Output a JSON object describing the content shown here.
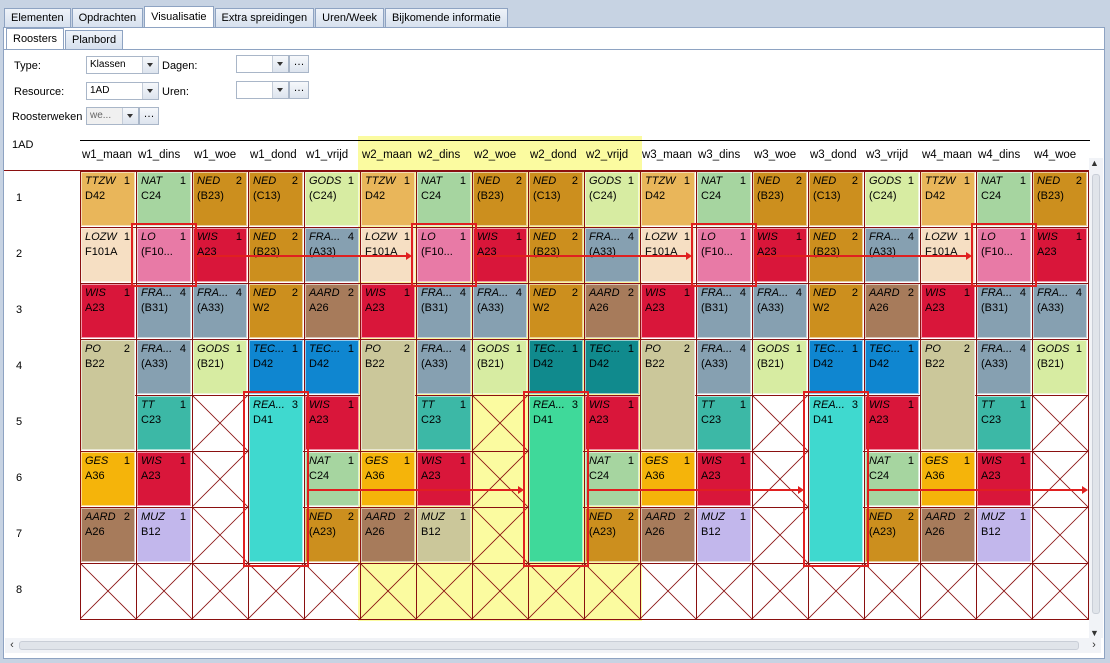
{
  "top_tabs": [
    "Elementen",
    "Opdrachten",
    "Visualisatie",
    "Extra spreidingen",
    "Uren/Week",
    "Bijkomende informatie"
  ],
  "active_top_tab": 2,
  "sub_tabs": [
    "Roosters",
    "Planbord"
  ],
  "active_sub_tab": 0,
  "form": {
    "type_label": "Type:",
    "type_value": "Klassen",
    "resource_label": "Resource:",
    "resource_value": "1AD",
    "dagen_label": "Dagen:",
    "dagen_value": "",
    "uren_label": "Uren:",
    "uren_value": "",
    "roosterweken_label": "Roosterweken",
    "roosterweken_value": "we..."
  },
  "grid": {
    "corner_label": "1AD",
    "columns": [
      "w1_maan",
      "w1_dins",
      "w1_woe",
      "w1_dond",
      "w1_vrijd",
      "w2_maan",
      "w2_dins",
      "w2_woe",
      "w2_dond",
      "w2_vrijd",
      "w3_maan",
      "w3_dins",
      "w3_woe",
      "w3_dond",
      "w3_vrijd",
      "w4_maan",
      "w4_dins",
      "w4_woe"
    ],
    "rows": [
      "1",
      "2",
      "3",
      "4",
      "5",
      "6",
      "7",
      "8"
    ],
    "cells": [
      {
        "c": 0,
        "r": 0,
        "s": "TTZW",
        "n": "1",
        "room": "D42",
        "bg": "#e9b65a"
      },
      {
        "c": 1,
        "r": 0,
        "s": "NAT",
        "n": "1",
        "room": "C24",
        "bg": "#a6d5a0"
      },
      {
        "c": 2,
        "r": 0,
        "s": "NED",
        "n": "2",
        "room": "(B23)",
        "bg": "#cc8f1e"
      },
      {
        "c": 3,
        "r": 0,
        "s": "NED",
        "n": "2",
        "room": "(C13)",
        "bg": "#cc8f1e"
      },
      {
        "c": 4,
        "r": 0,
        "s": "GODS",
        "n": "1",
        "room": "(C24)",
        "bg": "#d7eca2"
      },
      {
        "c": 5,
        "r": 0,
        "s": "TTZW",
        "n": "1",
        "room": "D42",
        "bg": "#e9b65a"
      },
      {
        "c": 6,
        "r": 0,
        "s": "NAT",
        "n": "1",
        "room": "C24",
        "bg": "#a6d5a0"
      },
      {
        "c": 7,
        "r": 0,
        "s": "NED",
        "n": "2",
        "room": "(B23)",
        "bg": "#cc8f1e"
      },
      {
        "c": 8,
        "r": 0,
        "s": "NED",
        "n": "2",
        "room": "(C13)",
        "bg": "#cc8f1e"
      },
      {
        "c": 9,
        "r": 0,
        "s": "GODS",
        "n": "1",
        "room": "(C24)",
        "bg": "#d7eca2"
      },
      {
        "c": 10,
        "r": 0,
        "s": "TTZW",
        "n": "1",
        "room": "D42",
        "bg": "#e9b65a"
      },
      {
        "c": 11,
        "r": 0,
        "s": "NAT",
        "n": "1",
        "room": "C24",
        "bg": "#a6d5a0"
      },
      {
        "c": 12,
        "r": 0,
        "s": "NED",
        "n": "2",
        "room": "(B23)",
        "bg": "#cc8f1e"
      },
      {
        "c": 13,
        "r": 0,
        "s": "NED",
        "n": "2",
        "room": "(C13)",
        "bg": "#cc8f1e"
      },
      {
        "c": 14,
        "r": 0,
        "s": "GODS",
        "n": "1",
        "room": "(C24)",
        "bg": "#d7eca2"
      },
      {
        "c": 15,
        "r": 0,
        "s": "TTZW",
        "n": "1",
        "room": "D42",
        "bg": "#e9b65a"
      },
      {
        "c": 16,
        "r": 0,
        "s": "NAT",
        "n": "1",
        "room": "C24",
        "bg": "#a6d5a0"
      },
      {
        "c": 17,
        "r": 0,
        "s": "NED",
        "n": "2",
        "room": "(B23)",
        "bg": "#cc8f1e"
      },
      {
        "c": 0,
        "r": 1,
        "s": "LOZW",
        "n": "1",
        "room": "F101A",
        "bg": "#f6dfc3"
      },
      {
        "c": 1,
        "r": 1,
        "s": "LO",
        "n": "1",
        "room": "(F10...",
        "bg": "#e87aa6"
      },
      {
        "c": 2,
        "r": 1,
        "s": "WIS",
        "n": "1",
        "room": "A23",
        "bg": "#d9163a"
      },
      {
        "c": 3,
        "r": 1,
        "s": "NED",
        "n": "2",
        "room": "(B23)",
        "bg": "#cc8f1e"
      },
      {
        "c": 4,
        "r": 1,
        "s": "FRA...",
        "n": "4",
        "room": "(A33)",
        "bg": "#86a0b1"
      },
      {
        "c": 5,
        "r": 1,
        "s": "LOZW",
        "n": "1",
        "room": "F101A",
        "bg": "#f6dfc3"
      },
      {
        "c": 6,
        "r": 1,
        "s": "LO",
        "n": "1",
        "room": "(F10...",
        "bg": "#e87aa6"
      },
      {
        "c": 7,
        "r": 1,
        "s": "WIS",
        "n": "1",
        "room": "A23",
        "bg": "#d9163a"
      },
      {
        "c": 8,
        "r": 1,
        "s": "NED",
        "n": "2",
        "room": "(B23)",
        "bg": "#cc8f1e"
      },
      {
        "c": 9,
        "r": 1,
        "s": "FRA...",
        "n": "4",
        "room": "(A33)",
        "bg": "#86a0b1"
      },
      {
        "c": 10,
        "r": 1,
        "s": "LOZW",
        "n": "1",
        "room": "F101A",
        "bg": "#f6dfc3"
      },
      {
        "c": 11,
        "r": 1,
        "s": "LO",
        "n": "1",
        "room": "(F10...",
        "bg": "#e87aa6"
      },
      {
        "c": 12,
        "r": 1,
        "s": "WIS",
        "n": "1",
        "room": "A23",
        "bg": "#d9163a"
      },
      {
        "c": 13,
        "r": 1,
        "s": "NED",
        "n": "2",
        "room": "(B23)",
        "bg": "#cc8f1e"
      },
      {
        "c": 14,
        "r": 1,
        "s": "FRA...",
        "n": "4",
        "room": "(A33)",
        "bg": "#86a0b1"
      },
      {
        "c": 15,
        "r": 1,
        "s": "LOZW",
        "n": "1",
        "room": "F101A",
        "bg": "#f6dfc3"
      },
      {
        "c": 16,
        "r": 1,
        "s": "LO",
        "n": "1",
        "room": "(F10...",
        "bg": "#e87aa6"
      },
      {
        "c": 17,
        "r": 1,
        "s": "WIS",
        "n": "1",
        "room": "A23",
        "bg": "#d9163a"
      },
      {
        "c": 0,
        "r": 2,
        "s": "WIS",
        "n": "1",
        "room": "A23",
        "bg": "#d9163a"
      },
      {
        "c": 1,
        "r": 2,
        "s": "FRA...",
        "n": "4",
        "room": "(B31)",
        "bg": "#86a0b1"
      },
      {
        "c": 2,
        "r": 2,
        "s": "FRA...",
        "n": "4",
        "room": "(A33)",
        "bg": "#86a0b1"
      },
      {
        "c": 3,
        "r": 2,
        "s": "NED",
        "n": "2",
        "room": "W2",
        "bg": "#cc8f1e"
      },
      {
        "c": 4,
        "r": 2,
        "s": "AARD",
        "n": "2",
        "room": "A26",
        "bg": "#a77b5b"
      },
      {
        "c": 5,
        "r": 2,
        "s": "WIS",
        "n": "1",
        "room": "A23",
        "bg": "#d9163a"
      },
      {
        "c": 6,
        "r": 2,
        "s": "FRA...",
        "n": "4",
        "room": "(B31)",
        "bg": "#86a0b1"
      },
      {
        "c": 7,
        "r": 2,
        "s": "FRA...",
        "n": "4",
        "room": "(A33)",
        "bg": "#86a0b1"
      },
      {
        "c": 8,
        "r": 2,
        "s": "NED",
        "n": "2",
        "room": "W2",
        "bg": "#cc8f1e"
      },
      {
        "c": 9,
        "r": 2,
        "s": "AARD",
        "n": "2",
        "room": "A26",
        "bg": "#a77b5b"
      },
      {
        "c": 10,
        "r": 2,
        "s": "WIS",
        "n": "1",
        "room": "A23",
        "bg": "#d9163a"
      },
      {
        "c": 11,
        "r": 2,
        "s": "FRA...",
        "n": "4",
        "room": "(B31)",
        "bg": "#86a0b1"
      },
      {
        "c": 12,
        "r": 2,
        "s": "FRA...",
        "n": "4",
        "room": "(A33)",
        "bg": "#86a0b1"
      },
      {
        "c": 13,
        "r": 2,
        "s": "NED",
        "n": "2",
        "room": "W2",
        "bg": "#cc8f1e"
      },
      {
        "c": 14,
        "r": 2,
        "s": "AARD",
        "n": "2",
        "room": "A26",
        "bg": "#a77b5b"
      },
      {
        "c": 15,
        "r": 2,
        "s": "WIS",
        "n": "1",
        "room": "A23",
        "bg": "#d9163a"
      },
      {
        "c": 16,
        "r": 2,
        "s": "FRA...",
        "n": "4",
        "room": "(B31)",
        "bg": "#86a0b1"
      },
      {
        "c": 17,
        "r": 2,
        "s": "FRA...",
        "n": "4",
        "room": "(A33)",
        "bg": "#86a0b1"
      },
      {
        "c": 0,
        "r": 3,
        "s": "PO",
        "n": "2",
        "room": "B22",
        "bg": "#cbc79a",
        "h": 2
      },
      {
        "c": 1,
        "r": 3,
        "s": "FRA...",
        "n": "4",
        "room": "(A33)",
        "bg": "#86a0b1"
      },
      {
        "c": 2,
        "r": 3,
        "s": "GODS",
        "n": "1",
        "room": "(B21)",
        "bg": "#d7eca2"
      },
      {
        "c": 3,
        "r": 3,
        "s": "TEC...",
        "n": "1",
        "room": "D42",
        "bg": "#0f86d0"
      },
      {
        "c": 4,
        "r": 3,
        "s": "TEC...",
        "n": "1",
        "room": "D42",
        "bg": "#0f86d0"
      },
      {
        "c": 5,
        "r": 3,
        "s": "PO",
        "n": "2",
        "room": "B22",
        "bg": "#cbc79a",
        "h": 2
      },
      {
        "c": 6,
        "r": 3,
        "s": "FRA...",
        "n": "4",
        "room": "(A33)",
        "bg": "#86a0b1"
      },
      {
        "c": 7,
        "r": 3,
        "s": "GODS",
        "n": "1",
        "room": "(B21)",
        "bg": "#d7eca2"
      },
      {
        "c": 8,
        "r": 3,
        "s": "TEC...",
        "n": "1",
        "room": "D42",
        "bg": "#108a8d"
      },
      {
        "c": 9,
        "r": 3,
        "s": "TEC...",
        "n": "1",
        "room": "D42",
        "bg": "#108a8d"
      },
      {
        "c": 10,
        "r": 3,
        "s": "PO",
        "n": "2",
        "room": "B22",
        "bg": "#cbc79a",
        "h": 2
      },
      {
        "c": 11,
        "r": 3,
        "s": "FRA...",
        "n": "4",
        "room": "(A33)",
        "bg": "#86a0b1"
      },
      {
        "c": 12,
        "r": 3,
        "s": "GODS",
        "n": "1",
        "room": "(B21)",
        "bg": "#d7eca2"
      },
      {
        "c": 13,
        "r": 3,
        "s": "TEC...",
        "n": "1",
        "room": "D42",
        "bg": "#0f86d0"
      },
      {
        "c": 14,
        "r": 3,
        "s": "TEC...",
        "n": "1",
        "room": "D42",
        "bg": "#0f86d0"
      },
      {
        "c": 15,
        "r": 3,
        "s": "PO",
        "n": "2",
        "room": "B22",
        "bg": "#cbc79a",
        "h": 2
      },
      {
        "c": 16,
        "r": 3,
        "s": "FRA...",
        "n": "4",
        "room": "(A33)",
        "bg": "#86a0b1"
      },
      {
        "c": 17,
        "r": 3,
        "s": "GODS",
        "n": "1",
        "room": "(B21)",
        "bg": "#d7eca2"
      },
      {
        "c": 1,
        "r": 4,
        "s": "TT",
        "n": "1",
        "room": "C23",
        "bg": "#3cb8a6"
      },
      {
        "c": 3,
        "r": 4,
        "s": "REA...",
        "n": "3",
        "room": "D41",
        "bg": "#3fd9cf",
        "h": 3
      },
      {
        "c": 4,
        "r": 4,
        "s": "WIS",
        "n": "1",
        "room": "A23",
        "bg": "#d9163a"
      },
      {
        "c": 6,
        "r": 4,
        "s": "TT",
        "n": "1",
        "room": "C23",
        "bg": "#3cb8a6"
      },
      {
        "c": 8,
        "r": 4,
        "s": "REA...",
        "n": "3",
        "room": "D41",
        "bg": "#3fd99a",
        "h": 3
      },
      {
        "c": 9,
        "r": 4,
        "s": "WIS",
        "n": "1",
        "room": "A23",
        "bg": "#d9163a"
      },
      {
        "c": 11,
        "r": 4,
        "s": "TT",
        "n": "1",
        "room": "C23",
        "bg": "#3cb8a6"
      },
      {
        "c": 13,
        "r": 4,
        "s": "REA...",
        "n": "3",
        "room": "D41",
        "bg": "#3fd9cf",
        "h": 3
      },
      {
        "c": 14,
        "r": 4,
        "s": "WIS",
        "n": "1",
        "room": "A23",
        "bg": "#d9163a"
      },
      {
        "c": 16,
        "r": 4,
        "s": "TT",
        "n": "1",
        "room": "C23",
        "bg": "#3cb8a6"
      },
      {
        "c": 0,
        "r": 5,
        "s": "GES",
        "n": "1",
        "room": "A36",
        "bg": "#f5b40a"
      },
      {
        "c": 1,
        "r": 5,
        "s": "WIS",
        "n": "1",
        "room": "A23",
        "bg": "#d9163a"
      },
      {
        "c": 4,
        "r": 5,
        "s": "NAT",
        "n": "1",
        "room": "C24",
        "bg": "#a6d5a0"
      },
      {
        "c": 5,
        "r": 5,
        "s": "GES",
        "n": "1",
        "room": "A36",
        "bg": "#f5b40a"
      },
      {
        "c": 6,
        "r": 5,
        "s": "WIS",
        "n": "1",
        "room": "A23",
        "bg": "#d9163a"
      },
      {
        "c": 9,
        "r": 5,
        "s": "NAT",
        "n": "1",
        "room": "C24",
        "bg": "#a6d5a0"
      },
      {
        "c": 10,
        "r": 5,
        "s": "GES",
        "n": "1",
        "room": "A36",
        "bg": "#f5b40a"
      },
      {
        "c": 11,
        "r": 5,
        "s": "WIS",
        "n": "1",
        "room": "A23",
        "bg": "#d9163a"
      },
      {
        "c": 14,
        "r": 5,
        "s": "NAT",
        "n": "1",
        "room": "C24",
        "bg": "#a6d5a0"
      },
      {
        "c": 15,
        "r": 5,
        "s": "GES",
        "n": "1",
        "room": "A36",
        "bg": "#f5b40a"
      },
      {
        "c": 16,
        "r": 5,
        "s": "WIS",
        "n": "1",
        "room": "A23",
        "bg": "#d9163a"
      },
      {
        "c": 0,
        "r": 6,
        "s": "AARD",
        "n": "2",
        "room": "A26",
        "bg": "#a77b5b"
      },
      {
        "c": 1,
        "r": 6,
        "s": "MUZ",
        "n": "1",
        "room": "B12",
        "bg": "#c2b7ec"
      },
      {
        "c": 4,
        "r": 6,
        "s": "NED",
        "n": "2",
        "room": "(A23)",
        "bg": "#cc8f1e"
      },
      {
        "c": 5,
        "r": 6,
        "s": "AARD",
        "n": "2",
        "room": "A26",
        "bg": "#a77b5b"
      },
      {
        "c": 6,
        "r": 6,
        "s": "MUZ",
        "n": "1",
        "room": "B12",
        "bg": "#cbc79a"
      },
      {
        "c": 9,
        "r": 6,
        "s": "NED",
        "n": "2",
        "room": "(A23)",
        "bg": "#cc8f1e"
      },
      {
        "c": 10,
        "r": 6,
        "s": "AARD",
        "n": "2",
        "room": "A26",
        "bg": "#a77b5b"
      },
      {
        "c": 11,
        "r": 6,
        "s": "MUZ",
        "n": "1",
        "room": "B12",
        "bg": "#c2b7ec"
      },
      {
        "c": 14,
        "r": 6,
        "s": "NED",
        "n": "2",
        "room": "(A23)",
        "bg": "#cc8f1e"
      },
      {
        "c": 15,
        "r": 6,
        "s": "AARD",
        "n": "2",
        "room": "A26",
        "bg": "#a77b5b"
      },
      {
        "c": 16,
        "r": 6,
        "s": "MUZ",
        "n": "1",
        "room": "B12",
        "bg": "#c2b7ec"
      }
    ],
    "empty_cells": [
      [
        2,
        4
      ],
      [
        7,
        4
      ],
      [
        12,
        4
      ],
      [
        17,
        4
      ],
      [
        2,
        5
      ],
      [
        7,
        5
      ],
      [
        12,
        5
      ],
      [
        17,
        5
      ],
      [
        2,
        6
      ],
      [
        7,
        6
      ],
      [
        12,
        6
      ],
      [
        17,
        6
      ],
      [
        0,
        7
      ],
      [
        1,
        7
      ],
      [
        2,
        7
      ],
      [
        3,
        7
      ],
      [
        4,
        7
      ],
      [
        5,
        7
      ],
      [
        6,
        7
      ],
      [
        7,
        7
      ],
      [
        8,
        7
      ],
      [
        9,
        7
      ],
      [
        10,
        7
      ],
      [
        11,
        7
      ],
      [
        12,
        7
      ],
      [
        13,
        7
      ],
      [
        14,
        7
      ],
      [
        15,
        7
      ],
      [
        16,
        7
      ],
      [
        17,
        7
      ]
    ],
    "highlight_boxes": [
      {
        "c": 1,
        "r": 1,
        "h": 1
      },
      {
        "c": 6,
        "r": 1,
        "h": 1
      },
      {
        "c": 11,
        "r": 1,
        "h": 1
      },
      {
        "c": 16,
        "r": 1,
        "h": 1
      },
      {
        "c": 3,
        "r": 4,
        "h": 3
      },
      {
        "c": 8,
        "r": 4,
        "h": 3
      },
      {
        "c": 13,
        "r": 4,
        "h": 3
      }
    ]
  },
  "colors": {
    "accent_red": "#e02020",
    "grid_line": "#8a1010",
    "highlight_week": "#fbfba0"
  }
}
